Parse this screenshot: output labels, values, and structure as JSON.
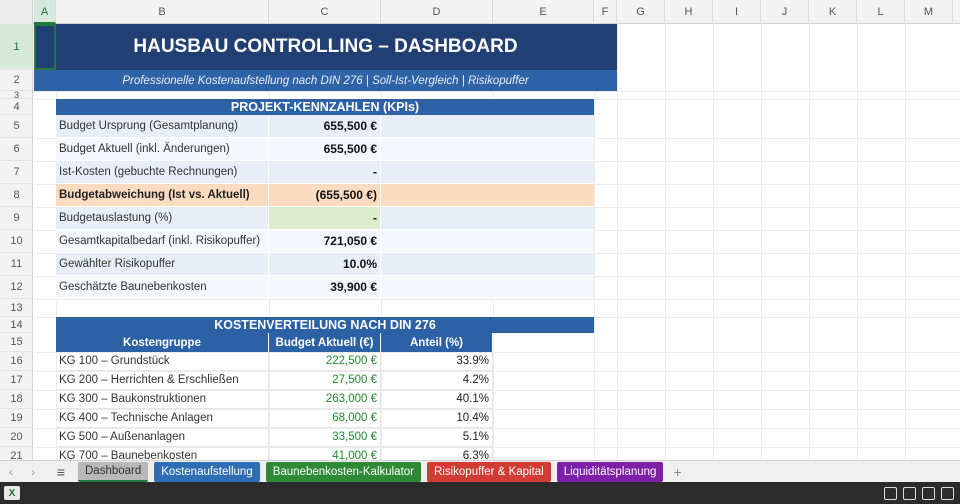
{
  "columns": [
    "A",
    "B",
    "C",
    "D",
    "E",
    "F",
    "G",
    "H",
    "I",
    "J",
    "K",
    "L",
    "M"
  ],
  "rows": [
    "1",
    "2",
    "3",
    "4",
    "5",
    "6",
    "7",
    "8",
    "9",
    "10",
    "11",
    "12",
    "13",
    "14",
    "15",
    "16",
    "17",
    "18",
    "19",
    "20",
    "21"
  ],
  "title": "HAUSBAU CONTROLLING – DASHBOARD",
  "subtitle": "Professionelle Kostenaufstellung nach DIN 276 | Soll-Ist-Vergleich | Risikopuffer",
  "kpi": {
    "header": "PROJEKT-KENNZAHLEN (KPIs)",
    "items": [
      {
        "label": "Budget Ursprung (Gesamtplanung)",
        "value": "655,500 €"
      },
      {
        "label": "Budget Aktuell (inkl. Änderungen)",
        "value": "655,500 €"
      },
      {
        "label": "Ist-Kosten (gebuchte Rechnungen)",
        "value": "-"
      },
      {
        "label": "Budgetabweichung (Ist vs. Aktuell)",
        "value": "(655,500 €)"
      },
      {
        "label": "Budgetauslastung (%)",
        "value": "-"
      },
      {
        "label": "Gesamtkapitalbedarf (inkl. Risikopuffer)",
        "value": "721,050 €"
      },
      {
        "label": "Gewählter Risikopuffer",
        "value": "10.0%"
      },
      {
        "label": "Geschätzte Baunebenkosten",
        "value": "39,900 €"
      }
    ]
  },
  "cost_table": {
    "header": "KOSTENVERTEILUNG NACH DIN 276",
    "columns": [
      "Kostengruppe",
      "Budget Aktuell (€)",
      "Anteil (%)"
    ],
    "rows": [
      {
        "group": "KG 100 – Grundstück",
        "budget": "222,500 €",
        "share": "33.9%"
      },
      {
        "group": "KG 200 – Herrichten & Erschließen",
        "budget": "27,500 €",
        "share": "4.2%"
      },
      {
        "group": "KG 300 – Baukonstruktionen",
        "budget": "263,000 €",
        "share": "40.1%"
      },
      {
        "group": "KG 400 – Technische Anlagen",
        "budget": "68,000 €",
        "share": "10.4%"
      },
      {
        "group": "KG 500 – Außenanlagen",
        "budget": "33,500 €",
        "share": "5.1%"
      },
      {
        "group": "KG 700 – Baunebenkosten",
        "budget": "41,000 €",
        "share": "6.3%"
      }
    ]
  },
  "tabs": {
    "dashboard": "Dashboard",
    "kosten": "Kostenaufstellung",
    "baunk": "Baunebenkosten-Kalkulator",
    "risiko": "Risikopuffer & Kapital",
    "liqui": "Liquiditätsplanung"
  },
  "colors": {
    "title_bg": "#213f73",
    "section_bg": "#2c61a6",
    "money_green": "#1f8a2d",
    "highlight": "#fcdcc0"
  }
}
